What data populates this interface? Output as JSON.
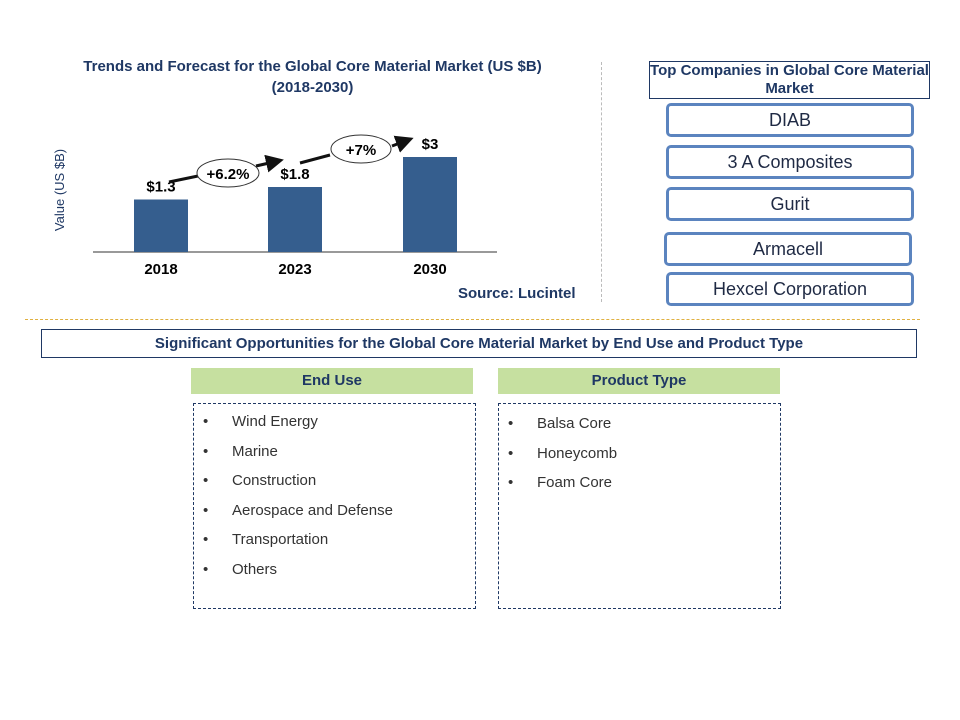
{
  "chart_data": {
    "type": "bar",
    "title": "Trends and Forecast for the Global Core Material  Market (US $B) (2018-2030)",
    "title_line1": "Trends and Forecast for the Global Core Material  Market (US $B)",
    "title_line2": "(2018-2030)",
    "ylabel": "Value (US $B)",
    "categories": [
      "2018",
      "2023",
      "2030"
    ],
    "values": [
      1.3,
      1.8,
      3
    ],
    "data_labels": [
      "$1.3",
      "$1.8",
      "$3"
    ],
    "growth_annotations": [
      "+6.2%",
      "+7%"
    ],
    "bar_color": "#355e8e",
    "grid": false,
    "source": "Source: Lucintel"
  },
  "top_companies": {
    "title": "Top Companies in Global Core Material  Market",
    "items": [
      "DIAB",
      "3 A Composites",
      "Gurit",
      "Armacell",
      "Hexcel Corporation"
    ]
  },
  "opportunities": {
    "title": "Significant Opportunities for the Global Core Material Market by End Use and Product Type",
    "end_use": {
      "header": "End Use",
      "items": [
        "Wind Energy",
        "Marine",
        "Construction",
        "Aerospace  and  Defense",
        "Transportation",
        "Others"
      ]
    },
    "product_type": {
      "header": "Product  Type",
      "items": [
        "Balsa   Core",
        "Honeycomb",
        "Foam  Core"
      ]
    }
  }
}
